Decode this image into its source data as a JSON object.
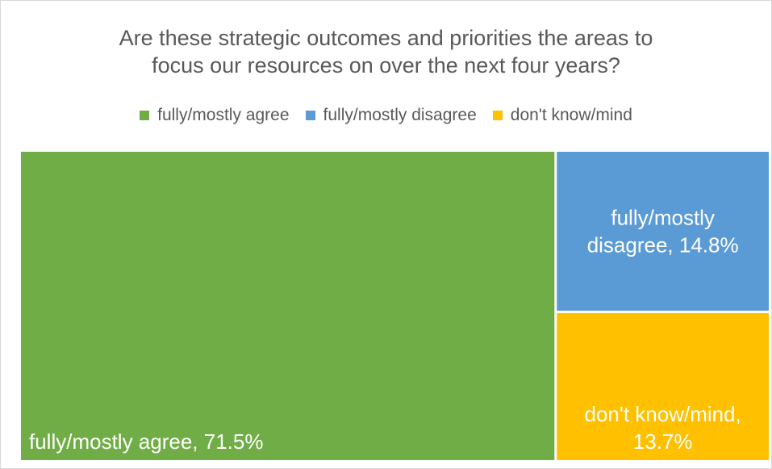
{
  "chart_data": {
    "type": "treemap",
    "title_lines": [
      "Are these strategic outcomes and priorities the areas to",
      "focus our resources on over the next four years?"
    ],
    "legend": [
      {
        "name": "fully/mostly agree",
        "color": "#70ad47"
      },
      {
        "name": "fully/mostly disagree",
        "color": "#5b9bd5"
      },
      {
        "name": "don't know/mind",
        "color": "#ffc000"
      }
    ],
    "series": [
      {
        "name": "fully/mostly agree",
        "value": 71.5,
        "color": "#70ad47",
        "label_lines": [
          "fully/mostly agree, 71.5%"
        ]
      },
      {
        "name": "fully/mostly disagree",
        "value": 14.8,
        "color": "#5b9bd5",
        "label_lines": [
          "fully/mostly",
          "disagree, 14.8%"
        ]
      },
      {
        "name": "don't know/mind",
        "value": 13.7,
        "color": "#ffc000",
        "label_lines": [
          "don't know/mind,",
          "13.7%"
        ]
      }
    ],
    "unit": "%"
  }
}
